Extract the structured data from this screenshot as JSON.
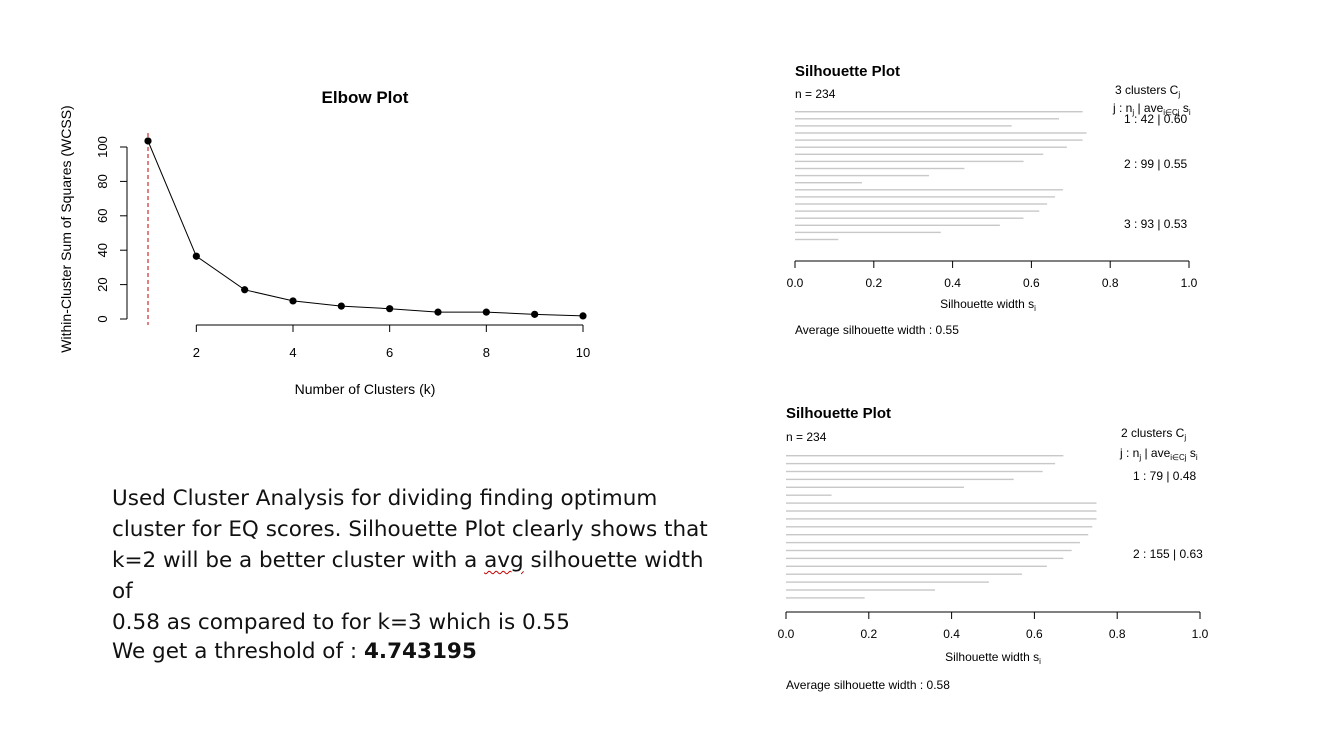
{
  "chart_data": [
    {
      "type": "line",
      "title": "Elbow Plot",
      "xlabel": "Number of Clusters (k)",
      "ylabel": "Within-Cluster Sum of Squares (WCSS)",
      "x": [
        1,
        2,
        3,
        4,
        5,
        6,
        7,
        8,
        9,
        10
      ],
      "values": [
        103.5,
        36.5,
        17,
        10.5,
        7.5,
        6,
        4,
        4,
        2.7,
        1.8
      ],
      "xticks": [
        "2",
        "4",
        "6",
        "8",
        "10"
      ],
      "yticks": [
        "0",
        "20",
        "40",
        "60",
        "80",
        "100"
      ],
      "xlim": [
        1,
        10
      ],
      "ylim": [
        0,
        105
      ],
      "reference_line_x": 1
    },
    {
      "type": "bar",
      "title": "Silhouette Plot",
      "n_label": "n = 234",
      "clusters_label": "3  clusters  C",
      "clusters_sub": "j",
      "header": {
        "a": "j :  n",
        "a_sub": "j",
        "b": " | ave",
        "b_sub": "i∈Cj",
        "c": " s",
        "c_sub": "i"
      },
      "cluster_labels": [
        "1 :   42  |  0.60",
        "2 :   99  |  0.55",
        "3 :   93  |  0.53"
      ],
      "xlabel": "Silhouette width s",
      "xlabel_sub": "i",
      "xticks": [
        "0.0",
        "0.2",
        "0.4",
        "0.6",
        "0.8",
        "1.0"
      ],
      "xlim": [
        0,
        1
      ],
      "avg_label": "Average silhouette width :  0.55",
      "values": [
        0.73,
        0.67,
        0.55,
        0.74,
        0.73,
        0.69,
        0.63,
        0.58,
        0.43,
        0.34,
        0.17,
        0.68,
        0.66,
        0.64,
        0.62,
        0.58,
        0.52,
        0.37,
        0.11
      ]
    },
    {
      "type": "bar",
      "title": "Silhouette Plot",
      "n_label": "n = 234",
      "clusters_label": "2  clusters  C",
      "clusters_sub": "j",
      "header": {
        "a": "j :  n",
        "a_sub": "j",
        "b": " | ave",
        "b_sub": "i∈Cj",
        "c": " s",
        "c_sub": "i"
      },
      "cluster_labels": [
        "1 :   79  |  0.48",
        "2 :   155  |  0.63"
      ],
      "xlabel": "Silhouette width s",
      "xlabel_sub": "i",
      "xticks": [
        "0.0",
        "0.2",
        "0.4",
        "0.6",
        "0.8",
        "1.0"
      ],
      "xlim": [
        0,
        1
      ],
      "avg_label": "Average silhouette width :  0.58",
      "values": [
        0.67,
        0.65,
        0.62,
        0.55,
        0.43,
        0.11,
        0.75,
        0.75,
        0.75,
        0.74,
        0.73,
        0.71,
        0.69,
        0.67,
        0.63,
        0.57,
        0.49,
        0.36,
        0.19
      ]
    }
  ],
  "description": {
    "line1": "Used Cluster Analysis for dividing finding optimum",
    "line2": "cluster for EQ scores. Silhouette Plot clearly shows that",
    "line3a": "k=2 will be a better cluster with a ",
    "line3b": "avg",
    "line3c": " silhouette width of",
    "line4": "0.58 as compared to for k=3 which is 0.55"
  },
  "threshold": {
    "label": "We get a threshold of : ",
    "value": "4.743195"
  }
}
